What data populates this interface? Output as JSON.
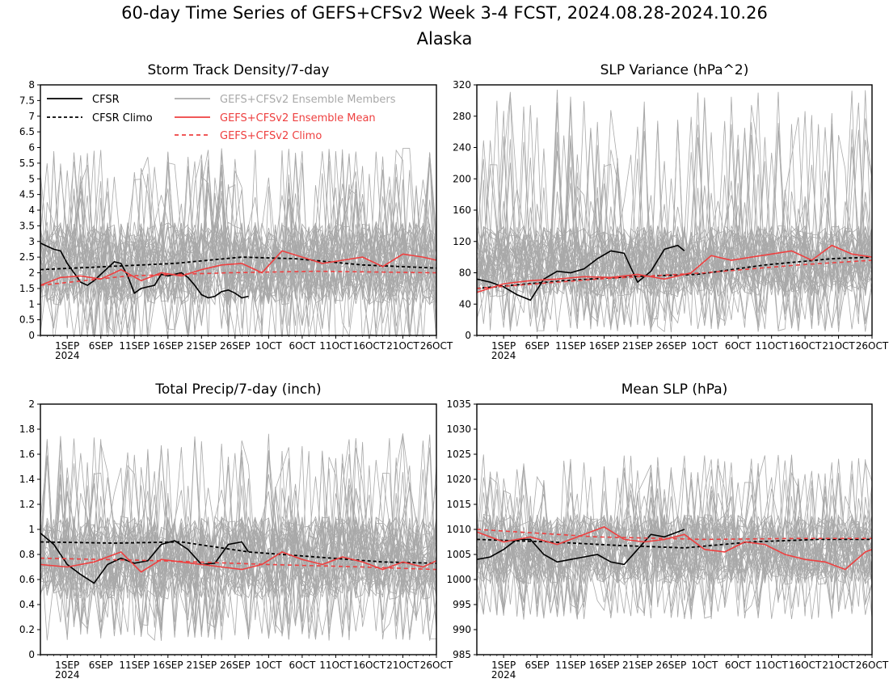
{
  "title": "60-day Time Series of GEFS+CFSv2 Week 3-4 FCST, 2024.08.28-2024.10.26",
  "subtitle": "Alaska",
  "colors": {
    "cfsr": "#000000",
    "members": "#a9a9a9",
    "ens_mean": "#ee4040",
    "gefs_climo": "#ee4040"
  },
  "legend": {
    "cfsr": "CFSR",
    "cfsr_climo": "CFSR Climo",
    "members": "GEFS+CFSv2 Ensemble Members",
    "ens_mean": "GEFS+CFSv2 Ensemble Mean",
    "gefs_climo": "GEFS+CFSv2 Climo"
  },
  "chart_data": [
    {
      "type": "line",
      "title": "Storm Track Density/7-day",
      "x_range": [
        "2024-08-28",
        "2024-10-26"
      ],
      "xticks": [
        "1SEP",
        "6SEP",
        "11SEP",
        "16SEP",
        "21SEP",
        "26SEP",
        "1OCT",
        "6OCT",
        "11OCT",
        "16OCT",
        "21OCT",
        "26OCT"
      ],
      "x_year_label": "2024",
      "ylim": [
        0,
        8
      ],
      "yticks": [
        "0",
        "0.5",
        "1",
        "1.5",
        "2",
        "2.5",
        "3",
        "3.5",
        "4",
        "4.5",
        "5",
        "5.5",
        "6",
        "6.5",
        "7",
        "7.5",
        "8"
      ],
      "legend_position": "top-left",
      "members_spread": {
        "lower": 0.4,
        "upper": 4.2,
        "max_peak": 6.0
      },
      "series": [
        {
          "name": "CFSR",
          "x": [
            "2024-08-28",
            "2024-08-29",
            "2024-08-30",
            "2024-08-31",
            "2024-09-01",
            "2024-09-02",
            "2024-09-03",
            "2024-09-04",
            "2024-09-05",
            "2024-09-06",
            "2024-09-07",
            "2024-09-08",
            "2024-09-09",
            "2024-09-10",
            "2024-09-11",
            "2024-09-12",
            "2024-09-13",
            "2024-09-14",
            "2024-09-15",
            "2024-09-16",
            "2024-09-17",
            "2024-09-18",
            "2024-09-19",
            "2024-09-20",
            "2024-09-21",
            "2024-09-22",
            "2024-09-23",
            "2024-09-24",
            "2024-09-25",
            "2024-09-26",
            "2024-09-27",
            "2024-09-28"
          ],
          "y": [
            2.95,
            2.85,
            2.75,
            2.7,
            2.3,
            2.0,
            1.7,
            1.6,
            1.75,
            1.95,
            2.15,
            2.35,
            2.3,
            1.9,
            1.35,
            1.5,
            1.55,
            1.6,
            1.95,
            1.9,
            1.95,
            2.0,
            1.85,
            1.6,
            1.3,
            1.2,
            1.25,
            1.4,
            1.45,
            1.35,
            1.2,
            1.25
          ]
        },
        {
          "name": "CFSR Climo",
          "x": [
            "2024-08-28",
            "2024-09-07",
            "2024-09-17",
            "2024-09-27",
            "2024-10-05",
            "2024-10-15",
            "2024-10-26"
          ],
          "y": [
            2.1,
            2.2,
            2.3,
            2.5,
            2.45,
            2.25,
            2.15
          ]
        },
        {
          "name": "GEFS+CFSv2 Ensemble Mean",
          "x": [
            "2024-08-28",
            "2024-08-31",
            "2024-09-03",
            "2024-09-06",
            "2024-09-09",
            "2024-09-12",
            "2024-09-15",
            "2024-09-18",
            "2024-09-21",
            "2024-09-24",
            "2024-09-27",
            "2024-09-30",
            "2024-10-03",
            "2024-10-06",
            "2024-10-09",
            "2024-10-12",
            "2024-10-15",
            "2024-10-18",
            "2024-10-21",
            "2024-10-24",
            "2024-10-26"
          ],
          "y": [
            1.6,
            1.85,
            1.9,
            1.8,
            2.1,
            1.75,
            2.0,
            1.9,
            2.1,
            2.25,
            2.3,
            2.0,
            2.7,
            2.5,
            2.3,
            2.4,
            2.5,
            2.2,
            2.6,
            2.5,
            2.4
          ]
        },
        {
          "name": "GEFS+CFSv2 Climo",
          "x": [
            "2024-08-28",
            "2024-09-10",
            "2024-09-25",
            "2024-10-08",
            "2024-10-26"
          ],
          "y": [
            1.6,
            1.9,
            2.0,
            2.05,
            2.0
          ]
        }
      ]
    },
    {
      "type": "line",
      "title": "SLP Variance (hPa^2)",
      "x_range": [
        "2024-08-28",
        "2024-10-26"
      ],
      "xticks": [
        "1SEP",
        "6SEP",
        "11SEP",
        "16SEP",
        "21SEP",
        "26SEP",
        "1OCT",
        "6OCT",
        "11OCT",
        "16OCT",
        "21OCT",
        "26OCT"
      ],
      "x_year_label": "2024",
      "ylim": [
        0,
        320
      ],
      "yticks": [
        "0",
        "40",
        "80",
        "120",
        "160",
        "200",
        "240",
        "280",
        "320"
      ],
      "members_spread": {
        "lower": 30,
        "upper": 160,
        "max_peak": 315
      },
      "series": [
        {
          "name": "CFSR",
          "x": [
            "2024-08-28",
            "2024-08-30",
            "2024-09-01",
            "2024-09-03",
            "2024-09-05",
            "2024-09-07",
            "2024-09-09",
            "2024-09-11",
            "2024-09-13",
            "2024-09-15",
            "2024-09-17",
            "2024-09-19",
            "2024-09-21",
            "2024-09-23",
            "2024-09-25",
            "2024-09-27",
            "2024-09-28"
          ],
          "y": [
            72,
            68,
            62,
            52,
            45,
            72,
            82,
            80,
            85,
            98,
            108,
            105,
            68,
            82,
            110,
            115,
            108
          ]
        },
        {
          "name": "CFSR Climo",
          "x": [
            "2024-08-28",
            "2024-09-10",
            "2024-09-20",
            "2024-09-30",
            "2024-10-10",
            "2024-10-20",
            "2024-10-26"
          ],
          "y": [
            60,
            70,
            75,
            78,
            90,
            98,
            100
          ]
        },
        {
          "name": "GEFS+CFSv2 Ensemble Mean",
          "x": [
            "2024-08-28",
            "2024-09-01",
            "2024-09-05",
            "2024-09-09",
            "2024-09-13",
            "2024-09-17",
            "2024-09-21",
            "2024-09-25",
            "2024-09-29",
            "2024-10-02",
            "2024-10-05",
            "2024-10-08",
            "2024-10-11",
            "2024-10-14",
            "2024-10-17",
            "2024-10-20",
            "2024-10-23",
            "2024-10-26"
          ],
          "y": [
            55,
            66,
            70,
            72,
            75,
            74,
            78,
            72,
            80,
            102,
            96,
            100,
            104,
            108,
            96,
            115,
            104,
            100
          ]
        },
        {
          "name": "GEFS+CFSv2 Climo",
          "x": [
            "2024-08-28",
            "2024-09-15",
            "2024-10-01",
            "2024-10-15",
            "2024-10-26"
          ],
          "y": [
            60,
            72,
            80,
            90,
            96
          ]
        }
      ]
    },
    {
      "type": "line",
      "title": "Total Precip/7-day (inch)",
      "x_range": [
        "2024-08-28",
        "2024-10-26"
      ],
      "xticks": [
        "1SEP",
        "6SEP",
        "11SEP",
        "16SEP",
        "21SEP",
        "26SEP",
        "1OCT",
        "6OCT",
        "11OCT",
        "16OCT",
        "21OCT",
        "26OCT"
      ],
      "x_year_label": "2024",
      "ylim": [
        0,
        2
      ],
      "yticks": [
        "0",
        "0.2",
        "0.4",
        "0.6",
        "0.8",
        "1",
        "1.2",
        "1.4",
        "1.6",
        "1.8",
        "2"
      ],
      "members_spread": {
        "lower": 0.3,
        "upper": 1.25,
        "max_peak": 1.78
      },
      "series": [
        {
          "name": "CFSR",
          "x": [
            "2024-08-28",
            "2024-08-30",
            "2024-09-01",
            "2024-09-03",
            "2024-09-05",
            "2024-09-07",
            "2024-09-09",
            "2024-09-11",
            "2024-09-13",
            "2024-09-15",
            "2024-09-17",
            "2024-09-19",
            "2024-09-21",
            "2024-09-23",
            "2024-09-25",
            "2024-09-27",
            "2024-09-28"
          ],
          "y": [
            0.97,
            0.88,
            0.72,
            0.64,
            0.57,
            0.72,
            0.77,
            0.73,
            0.75,
            0.88,
            0.91,
            0.84,
            0.72,
            0.73,
            0.88,
            0.9,
            0.82
          ]
        },
        {
          "name": "CFSR Climo",
          "x": [
            "2024-08-28",
            "2024-09-08",
            "2024-09-18",
            "2024-09-28",
            "2024-10-08",
            "2024-10-18",
            "2024-10-26"
          ],
          "y": [
            0.9,
            0.89,
            0.9,
            0.82,
            0.78,
            0.74,
            0.73
          ]
        },
        {
          "name": "GEFS+CFSv2 Ensemble Mean",
          "x": [
            "2024-08-28",
            "2024-09-01",
            "2024-09-05",
            "2024-09-09",
            "2024-09-12",
            "2024-09-15",
            "2024-09-18",
            "2024-09-21",
            "2024-09-24",
            "2024-09-27",
            "2024-09-30",
            "2024-10-03",
            "2024-10-06",
            "2024-10-09",
            "2024-10-12",
            "2024-10-15",
            "2024-10-18",
            "2024-10-21",
            "2024-10-24",
            "2024-10-26"
          ],
          "y": [
            0.72,
            0.7,
            0.74,
            0.82,
            0.66,
            0.76,
            0.74,
            0.72,
            0.7,
            0.68,
            0.72,
            0.82,
            0.76,
            0.72,
            0.78,
            0.74,
            0.68,
            0.74,
            0.7,
            0.75
          ]
        },
        {
          "name": "GEFS+CFSv2 Climo",
          "x": [
            "2024-08-28",
            "2024-09-15",
            "2024-10-01",
            "2024-10-15",
            "2024-10-26"
          ],
          "y": [
            0.77,
            0.75,
            0.72,
            0.7,
            0.68
          ]
        }
      ]
    },
    {
      "type": "line",
      "title": "Mean SLP (hPa)",
      "x_range": [
        "2024-08-28",
        "2024-10-26"
      ],
      "xticks": [
        "1SEP",
        "6SEP",
        "11SEP",
        "16SEP",
        "21SEP",
        "26SEP",
        "1OCT",
        "6OCT",
        "11OCT",
        "16OCT",
        "21OCT",
        "26OCT"
      ],
      "x_year_label": "2024",
      "ylim": [
        985,
        1035
      ],
      "yticks": [
        "985",
        "990",
        "995",
        "1000",
        "1005",
        "1010",
        "1015",
        "1020",
        "1025",
        "1030",
        "1035"
      ],
      "members_spread": {
        "lower": 996,
        "upper": 1016,
        "max_peak": 1025
      },
      "series": [
        {
          "name": "CFSR",
          "x": [
            "2024-08-28",
            "2024-08-30",
            "2024-09-01",
            "2024-09-03",
            "2024-09-05",
            "2024-09-07",
            "2024-09-09",
            "2024-09-11",
            "2024-09-13",
            "2024-09-15",
            "2024-09-17",
            "2024-09-19",
            "2024-09-21",
            "2024-09-23",
            "2024-09-25",
            "2024-09-27",
            "2024-09-28"
          ],
          "y": [
            1004,
            1004.5,
            1006,
            1008,
            1008,
            1005,
            1003.5,
            1004,
            1004.5,
            1005,
            1003.5,
            1003,
            1006,
            1009,
            1008.5,
            1009.5,
            1010
          ]
        },
        {
          "name": "CFSR Climo",
          "x": [
            "2024-08-28",
            "2024-09-08",
            "2024-09-18",
            "2024-09-28",
            "2024-10-08",
            "2024-10-18",
            "2024-10-26"
          ],
          "y": [
            1008,
            1007.5,
            1006.8,
            1006.3,
            1007.5,
            1008,
            1008
          ]
        },
        {
          "name": "GEFS+CFSv2 Ensemble Mean",
          "x": [
            "2024-08-28",
            "2024-09-01",
            "2024-09-05",
            "2024-09-09",
            "2024-09-13",
            "2024-09-16",
            "2024-09-19",
            "2024-09-22",
            "2024-09-25",
            "2024-09-28",
            "2024-10-01",
            "2024-10-04",
            "2024-10-07",
            "2024-10-10",
            "2024-10-13",
            "2024-10-16",
            "2024-10-19",
            "2024-10-22",
            "2024-10-25",
            "2024-10-26"
          ],
          "y": [
            1009.5,
            1007.5,
            1008.5,
            1007,
            1009,
            1010.5,
            1008,
            1007.5,
            1008,
            1009,
            1006,
            1005.5,
            1007.5,
            1007,
            1005,
            1004,
            1003.5,
            1002,
            1005.5,
            1006
          ]
        },
        {
          "name": "GEFS+CFSv2 Climo",
          "x": [
            "2024-08-28",
            "2024-09-15",
            "2024-10-01",
            "2024-10-15",
            "2024-10-26"
          ],
          "y": [
            1010,
            1008.5,
            1008,
            1008.2,
            1008.2
          ]
        }
      ]
    }
  ]
}
